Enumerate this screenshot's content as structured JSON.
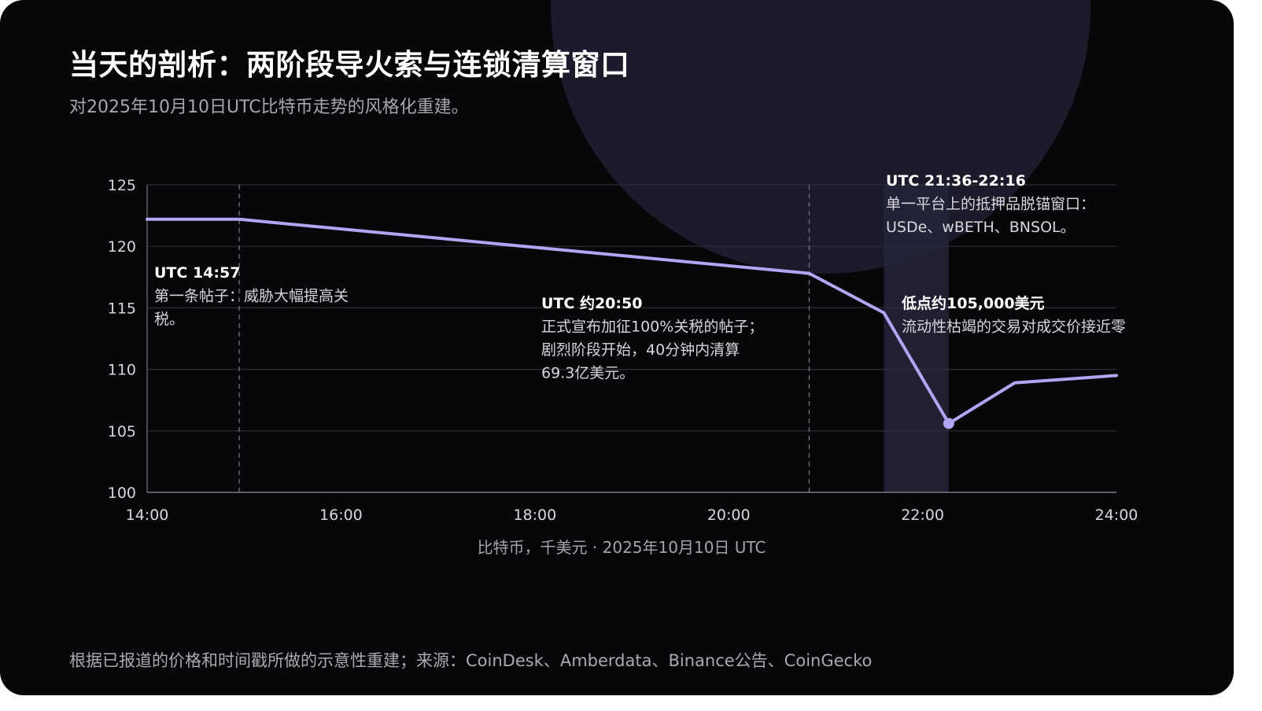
{
  "title": "当天的剖析：两阶段导火索与连锁清算窗口",
  "subtitle": "对2025年10月10日UTC比特币走势的风格化重建。",
  "footer": "根据已报道的价格和时间戳所做的示意性重建；来源：CoinDesk、Amberdata、Binance公告、CoinGecko",
  "colors": {
    "background": "#070709",
    "accent_line": "#b3a4f4",
    "band": "#24243a",
    "blob": "#1b1b2c"
  },
  "chart_data": {
    "type": "line",
    "xlabel": "比特币，千美元 · 2025年10月10日 UTC",
    "x_ticks": [
      "14:00",
      "16:00",
      "18:00",
      "20:00",
      "22:00",
      "24:00"
    ],
    "y_ticks": [
      "100",
      "105",
      "110",
      "115",
      "120",
      "125"
    ],
    "xlim": [
      14,
      24
    ],
    "ylim": [
      100,
      125
    ],
    "grid": true,
    "series": [
      {
        "x": [
          14.0,
          14.95,
          20.83,
          21.6,
          22.27,
          22.95,
          24.0
        ],
        "y": [
          122.2,
          122.2,
          117.8,
          114.6,
          105.6,
          108.9,
          109.5
        ]
      }
    ],
    "vlines": [
      14.95,
      20.83
    ],
    "shaded_band": [
      21.6,
      22.27
    ],
    "low_point": {
      "x": 22.27,
      "y": 105.6
    },
    "annotations": [
      {
        "head": "UTC 14:57",
        "lines": [
          "第一条帖子：威胁大幅提高关",
          "税。"
        ]
      },
      {
        "head": "UTC 约20:50",
        "lines": [
          "正式宣布加征100%关税的帖子；",
          "剧烈阶段开始，40分钟内清算",
          "69.3亿美元。"
        ]
      },
      {
        "head": "UTC 21:36-22:16",
        "lines": [
          "单一平台上的抵押品脱锚窗口：",
          "USDe、wBETH、BNSOL。"
        ]
      },
      {
        "head": "低点约105,000美元",
        "lines": [
          "流动性枯竭的交易对成交价接近零"
        ]
      }
    ]
  }
}
